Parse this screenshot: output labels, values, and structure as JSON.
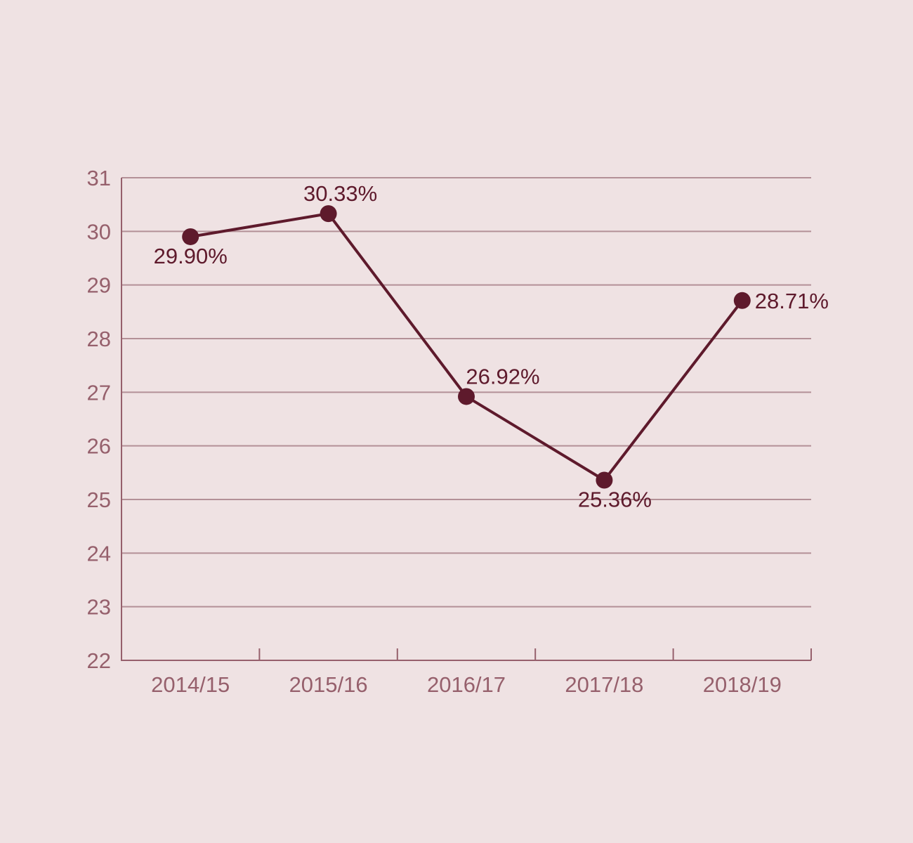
{
  "chart_data": {
    "type": "line",
    "title": "",
    "xlabel": "",
    "ylabel": "",
    "categories": [
      "2014/15",
      "2015/16",
      "2016/17",
      "2017/18",
      "2018/19"
    ],
    "series": [
      {
        "values": [
          29.9,
          30.33,
          26.92,
          25.36,
          28.71
        ],
        "labels": [
          "29.90%",
          "30.33%",
          "26.92%",
          "25.36%",
          "28.71%"
        ]
      }
    ],
    "ylim": [
      22,
      31
    ],
    "yticks": [
      22,
      23,
      24,
      25,
      26,
      27,
      28,
      29,
      30,
      31
    ],
    "grid": true,
    "legend": "none",
    "colors": {
      "background": "#efe2e3",
      "line": "#5e1a2c",
      "grid": "#b39097",
      "axis": "#96606c",
      "tick_text": "#96606c",
      "label_text": "#5e1a2c"
    }
  }
}
